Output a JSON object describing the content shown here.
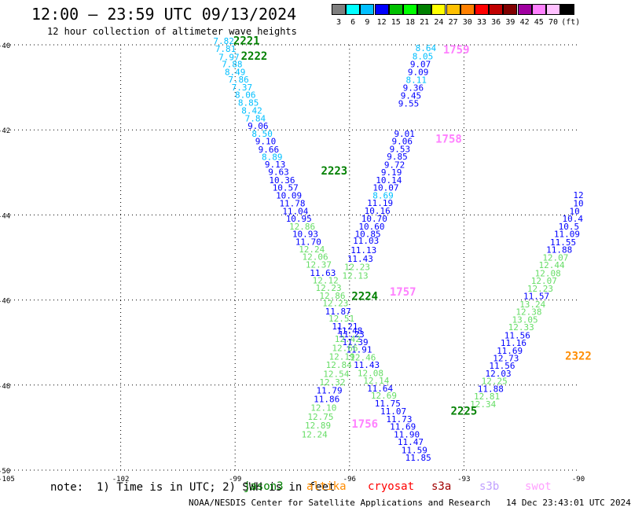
{
  "title": "12:00 – 23:59 UTC 09/13/2024",
  "subtitle": "12 hour collection of altimeter wave heights",
  "colorbar": {
    "labels": [
      "3",
      "6",
      "9",
      "12",
      "15",
      "18",
      "21",
      "24",
      "27",
      "30",
      "33",
      "36",
      "39",
      "42",
      "45",
      "70",
      "(ft)"
    ],
    "colors": [
      "#7f7f7f",
      "#00ffff",
      "#00bfff",
      "#0000ff",
      "#00c000",
      "#00ff00",
      "#008000",
      "#ffff00",
      "#ffc000",
      "#ff8000",
      "#ff0000",
      "#c00000",
      "#800000",
      "#a000a0",
      "#ff80ff",
      "#ffc0ff",
      "#000000"
    ]
  },
  "axes": {
    "y_ticks": [
      "-40",
      "-42",
      "-44",
      "-46",
      "-48",
      "-50"
    ],
    "x_ticks": [
      "-105",
      "-102",
      "-99",
      "-96",
      "-93",
      "-90"
    ]
  },
  "chart_data": {
    "type": "scatter",
    "xlim": [
      -105,
      -90
    ],
    "ylim": [
      -50,
      -40
    ],
    "x_units": "degrees longitude",
    "y_units": "degrees latitude",
    "grid": true,
    "tracks": [
      {
        "pass": "2221/2222/2223/2224/2225",
        "points": [
          {
            "lon": -99.3,
            "lat": -39.98,
            "v": "7.82",
            "c": "#00bfff"
          },
          {
            "lon": -99.25,
            "lat": -40.17,
            "v": "7.81",
            "c": "#00bfff"
          },
          {
            "lon": -99.16,
            "lat": -40.36,
            "v": "7.97",
            "c": "#00bfff"
          },
          {
            "lon": -99.08,
            "lat": -40.53,
            "v": "7.88",
            "c": "#00bfff"
          },
          {
            "lon": -99.0,
            "lat": -40.71,
            "v": "8.49",
            "c": "#00bfff"
          },
          {
            "lon": -98.91,
            "lat": -40.89,
            "v": "7.86",
            "c": "#00bfff"
          },
          {
            "lon": -98.82,
            "lat": -41.07,
            "v": "7.37",
            "c": "#00bfff"
          },
          {
            "lon": -98.73,
            "lat": -41.25,
            "v": "8.06",
            "c": "#00bfff"
          },
          {
            "lon": -98.65,
            "lat": -41.43,
            "v": "8.85",
            "c": "#00bfff"
          },
          {
            "lon": -98.56,
            "lat": -41.62,
            "v": "8.42",
            "c": "#00bfff"
          },
          {
            "lon": -98.47,
            "lat": -41.8,
            "v": "7.84",
            "c": "#00bfff"
          },
          {
            "lon": -98.4,
            "lat": -41.98,
            "v": "9.06",
            "c": "#0000ff"
          },
          {
            "lon": -98.29,
            "lat": -42.16,
            "v": "8.50",
            "c": "#00bfff"
          },
          {
            "lon": -98.2,
            "lat": -42.34,
            "v": "9.10",
            "c": "#0000ff"
          },
          {
            "lon": -98.12,
            "lat": -42.53,
            "v": "9.66",
            "c": "#0000ff"
          },
          {
            "lon": -98.03,
            "lat": -42.71,
            "v": "8.89",
            "c": "#00bfff"
          },
          {
            "lon": -97.95,
            "lat": -42.88,
            "v": "9.13",
            "c": "#0000ff"
          },
          {
            "lon": -97.86,
            "lat": -43.06,
            "v": "9.63",
            "c": "#0000ff"
          },
          {
            "lon": -97.77,
            "lat": -43.25,
            "v": "10.36",
            "c": "#0000ff"
          },
          {
            "lon": -97.68,
            "lat": -43.43,
            "v": "10.57",
            "c": "#0000ff"
          },
          {
            "lon": -97.59,
            "lat": -43.61,
            "v": "10.09",
            "c": "#0000ff"
          },
          {
            "lon": -97.5,
            "lat": -43.8,
            "v": "11.78",
            "c": "#0000ff"
          },
          {
            "lon": -97.42,
            "lat": -43.98,
            "v": "11.04",
            "c": "#0000ff"
          },
          {
            "lon": -97.33,
            "lat": -44.16,
            "v": "10.95",
            "c": "#0000ff"
          },
          {
            "lon": -97.24,
            "lat": -44.34,
            "v": "12.86",
            "c": "#66dd66"
          },
          {
            "lon": -97.16,
            "lat": -44.52,
            "v": "10.93",
            "c": "#0000ff"
          },
          {
            "lon": -97.08,
            "lat": -44.7,
            "v": "11.70",
            "c": "#0000ff"
          },
          {
            "lon": -96.99,
            "lat": -44.88,
            "v": "12.24",
            "c": "#66dd66"
          },
          {
            "lon": -96.9,
            "lat": -45.06,
            "v": "12.06",
            "c": "#66dd66"
          },
          {
            "lon": -96.81,
            "lat": -45.24,
            "v": "12.37",
            "c": "#66dd66"
          },
          {
            "lon": -96.7,
            "lat": -45.43,
            "v": "11.63",
            "c": "#0000ff"
          },
          {
            "lon": -96.63,
            "lat": -45.61,
            "v": "12.12",
            "c": "#66dd66"
          },
          {
            "lon": -96.55,
            "lat": -45.79,
            "v": "12.23",
            "c": "#66dd66"
          },
          {
            "lon": -96.45,
            "lat": -45.97,
            "v": "12.86",
            "c": "#66dd66"
          },
          {
            "lon": -96.37,
            "lat": -46.15,
            "v": "12.23",
            "c": "#66dd66"
          },
          {
            "lon": -96.3,
            "lat": -46.34,
            "v": "11.87",
            "c": "#0000ff"
          },
          {
            "lon": -96.21,
            "lat": -46.51,
            "v": "12.51",
            "c": "#66dd66"
          },
          {
            "lon": -96.12,
            "lat": -46.69,
            "v": "11.21",
            "c": "#0000ff"
          },
          {
            "lon": -95.95,
            "lat": -46.88,
            "v": "11.23",
            "c": "#0000ff"
          },
          {
            "lon": -95.85,
            "lat": -47.06,
            "v": "11.39",
            "c": "#0000ff"
          },
          {
            "lon": -95.75,
            "lat": -47.24,
            "v": "11.91",
            "c": "#0000ff"
          },
          {
            "lon": -95.65,
            "lat": -47.42,
            "v": "12.46",
            "c": "#66dd66"
          },
          {
            "lon": -95.55,
            "lat": -47.6,
            "v": "11.43",
            "c": "#0000ff"
          },
          {
            "lon": -95.45,
            "lat": -47.79,
            "v": "12.08",
            "c": "#66dd66"
          },
          {
            "lon": -95.3,
            "lat": -47.97,
            "v": "12.14",
            "c": "#66dd66"
          },
          {
            "lon": -95.2,
            "lat": -48.15,
            "v": "11.64",
            "c": "#0000ff"
          },
          {
            "lon": -95.1,
            "lat": -48.32,
            "v": "12.69",
            "c": "#66dd66"
          },
          {
            "lon": -95.0,
            "lat": -48.5,
            "v": "11.75",
            "c": "#0000ff"
          },
          {
            "lon": -94.85,
            "lat": -48.69,
            "v": "11.07",
            "c": "#0000ff"
          },
          {
            "lon": -94.7,
            "lat": -48.87,
            "v": "11.73",
            "c": "#0000ff"
          },
          {
            "lon": -94.6,
            "lat": -49.05,
            "v": "11.69",
            "c": "#0000ff"
          },
          {
            "lon": -94.5,
            "lat": -49.23,
            "v": "11.90",
            "c": "#0000ff"
          },
          {
            "lon": -94.4,
            "lat": -49.41,
            "v": "11.47",
            "c": "#0000ff"
          },
          {
            "lon": -94.3,
            "lat": -49.6,
            "v": "11.59",
            "c": "#0000ff"
          },
          {
            "lon": -94.2,
            "lat": -49.78,
            "v": "11.85",
            "c": "#0000ff"
          }
        ]
      },
      {
        "pass": "1756/1757/1758/1759",
        "points": [
          {
            "lon": -94.0,
            "lat": -40.15,
            "v": "8.64",
            "c": "#00bfff"
          },
          {
            "lon": -94.08,
            "lat": -40.34,
            "v": "8.05",
            "c": "#00bfff"
          },
          {
            "lon": -94.14,
            "lat": -40.53,
            "v": "9.07",
            "c": "#0000ff"
          },
          {
            "lon": -94.2,
            "lat": -40.71,
            "v": "9.09",
            "c": "#0000ff"
          },
          {
            "lon": -94.25,
            "lat": -40.9,
            "v": "8.11",
            "c": "#00bfff"
          },
          {
            "lon": -94.33,
            "lat": -41.08,
            "v": "9.36",
            "c": "#0000ff"
          },
          {
            "lon": -94.39,
            "lat": -41.27,
            "v": "9.45",
            "c": "#0000ff"
          },
          {
            "lon": -94.45,
            "lat": -41.45,
            "v": "9.55",
            "c": "#0000ff"
          },
          {
            "lon": -94.56,
            "lat": -42.16,
            "v": "9.01",
            "c": "#0000ff"
          },
          {
            "lon": -94.62,
            "lat": -42.34,
            "v": "9.06",
            "c": "#0000ff"
          },
          {
            "lon": -94.68,
            "lat": -42.52,
            "v": "9.53",
            "c": "#0000ff"
          },
          {
            "lon": -94.75,
            "lat": -42.7,
            "v": "9.85",
            "c": "#0000ff"
          },
          {
            "lon": -94.82,
            "lat": -42.89,
            "v": "9.72",
            "c": "#0000ff"
          },
          {
            "lon": -94.9,
            "lat": -43.07,
            "v": "9.19",
            "c": "#0000ff"
          },
          {
            "lon": -94.97,
            "lat": -43.25,
            "v": "10.14",
            "c": "#0000ff"
          },
          {
            "lon": -95.05,
            "lat": -43.43,
            "v": "10.07",
            "c": "#0000ff"
          },
          {
            "lon": -95.12,
            "lat": -43.61,
            "v": "8.69",
            "c": "#00bfff"
          },
          {
            "lon": -95.2,
            "lat": -43.79,
            "v": "11.19",
            "c": "#0000ff"
          },
          {
            "lon": -95.27,
            "lat": -43.97,
            "v": "10.16",
            "c": "#0000ff"
          },
          {
            "lon": -95.35,
            "lat": -44.16,
            "v": "10.70",
            "c": "#0000ff"
          },
          {
            "lon": -95.42,
            "lat": -44.34,
            "v": "10.60",
            "c": "#0000ff"
          },
          {
            "lon": -95.52,
            "lat": -44.52,
            "v": "10.85",
            "c": "#0000ff"
          },
          {
            "lon": -95.57,
            "lat": -44.68,
            "v": "11.03",
            "c": "#0000ff"
          },
          {
            "lon": -95.63,
            "lat": -44.9,
            "v": "11.13",
            "c": "#0000ff"
          },
          {
            "lon": -95.72,
            "lat": -45.1,
            "v": "11.43",
            "c": "#0000ff"
          },
          {
            "lon": -95.8,
            "lat": -45.3,
            "v": "12.23",
            "c": "#66dd66"
          },
          {
            "lon": -95.85,
            "lat": -45.5,
            "v": "12.13",
            "c": "#66dd66"
          },
          {
            "lon": -96.0,
            "lat": -46.79,
            "v": "11.48",
            "c": "#0000ff"
          },
          {
            "lon": -96.05,
            "lat": -46.99,
            "v": "12.42",
            "c": "#66dd66"
          },
          {
            "lon": -96.12,
            "lat": -47.2,
            "v": "12.66",
            "c": "#66dd66"
          },
          {
            "lon": -96.2,
            "lat": -47.4,
            "v": "12.19",
            "c": "#66dd66"
          },
          {
            "lon": -96.28,
            "lat": -47.6,
            "v": "12.84",
            "c": "#66dd66"
          },
          {
            "lon": -96.35,
            "lat": -47.81,
            "v": "12.54",
            "c": "#66dd66"
          },
          {
            "lon": -96.45,
            "lat": -48.0,
            "v": "12.32",
            "c": "#66dd66"
          },
          {
            "lon": -96.53,
            "lat": -48.2,
            "v": "11.79",
            "c": "#0000ff"
          },
          {
            "lon": -96.6,
            "lat": -48.4,
            "v": "11.86",
            "c": "#0000ff"
          },
          {
            "lon": -96.68,
            "lat": -48.6,
            "v": "12.10",
            "c": "#66dd66"
          },
          {
            "lon": -96.76,
            "lat": -48.82,
            "v": "12.75",
            "c": "#66dd66"
          },
          {
            "lon": -96.83,
            "lat": -49.02,
            "v": "12.89",
            "c": "#66dd66"
          },
          {
            "lon": -96.92,
            "lat": -49.23,
            "v": "12.24",
            "c": "#66dd66"
          }
        ]
      },
      {
        "pass": "2322",
        "points": [
          {
            "lon": -90.0,
            "lat": -43.6,
            "v": "12",
            "c": "#0000ff"
          },
          {
            "lon": -90.0,
            "lat": -43.8,
            "v": "10",
            "c": "#0000ff"
          },
          {
            "lon": -90.1,
            "lat": -43.98,
            "v": "10",
            "c": "#0000ff"
          },
          {
            "lon": -90.15,
            "lat": -44.16,
            "v": "10.4",
            "c": "#0000ff"
          },
          {
            "lon": -90.25,
            "lat": -44.34,
            "v": "10.5",
            "c": "#0000ff"
          },
          {
            "lon": -90.3,
            "lat": -44.52,
            "v": "11.09",
            "c": "#0000ff"
          },
          {
            "lon": -90.4,
            "lat": -44.71,
            "v": "11.55",
            "c": "#0000ff"
          },
          {
            "lon": -90.5,
            "lat": -44.89,
            "v": "11.88",
            "c": "#0000ff"
          },
          {
            "lon": -90.6,
            "lat": -45.07,
            "v": "12.07",
            "c": "#66dd66"
          },
          {
            "lon": -90.7,
            "lat": -45.25,
            "v": "12.44",
            "c": "#66dd66"
          },
          {
            "lon": -90.8,
            "lat": -45.44,
            "v": "12.08",
            "c": "#66dd66"
          },
          {
            "lon": -90.9,
            "lat": -45.62,
            "v": "12.07",
            "c": "#66dd66"
          },
          {
            "lon": -91.0,
            "lat": -45.8,
            "v": "12.23",
            "c": "#66dd66"
          },
          {
            "lon": -91.1,
            "lat": -45.98,
            "v": "11.57",
            "c": "#0000ff"
          },
          {
            "lon": -91.2,
            "lat": -46.17,
            "v": "13.24",
            "c": "#66dd66"
          },
          {
            "lon": -91.3,
            "lat": -46.35,
            "v": "12.38",
            "c": "#66dd66"
          },
          {
            "lon": -91.4,
            "lat": -46.53,
            "v": "13.05",
            "c": "#66dd66"
          },
          {
            "lon": -91.5,
            "lat": -46.71,
            "v": "12.33",
            "c": "#66dd66"
          },
          {
            "lon": -91.6,
            "lat": -46.9,
            "v": "11.56",
            "c": "#0000ff"
          },
          {
            "lon": -91.7,
            "lat": -47.08,
            "v": "11.16",
            "c": "#0000ff"
          },
          {
            "lon": -91.8,
            "lat": -47.26,
            "v": "11.69",
            "c": "#0000ff"
          },
          {
            "lon": -91.9,
            "lat": -47.44,
            "v": "12.73",
            "c": "#0000ff"
          },
          {
            "lon": -92.0,
            "lat": -47.62,
            "v": "11.56",
            "c": "#0000ff"
          },
          {
            "lon": -92.1,
            "lat": -47.8,
            "v": "12.03",
            "c": "#0000ff"
          },
          {
            "lon": -92.2,
            "lat": -47.98,
            "v": "12.25",
            "c": "#66dd66"
          },
          {
            "lon": -92.3,
            "lat": -48.16,
            "v": "11.88",
            "c": "#0000ff"
          },
          {
            "lon": -92.4,
            "lat": -48.34,
            "v": "12.81",
            "c": "#66dd66"
          },
          {
            "lon": -92.5,
            "lat": -48.52,
            "v": "12.34",
            "c": "#66dd66"
          }
        ]
      }
    ],
    "pass_labels": [
      {
        "lon": -98.7,
        "lat": -39.99,
        "text": "2221",
        "c": "#008000"
      },
      {
        "lon": -98.5,
        "lat": -40.35,
        "text": "2222",
        "c": "#008000"
      },
      {
        "lon": -96.4,
        "lat": -43.05,
        "text": "2223",
        "c": "#008000"
      },
      {
        "lon": -95.6,
        "lat": -46.0,
        "text": "2224",
        "c": "#008000"
      },
      {
        "lon": -93.0,
        "lat": -48.7,
        "text": "2225",
        "c": "#008000"
      },
      {
        "lon": -93.2,
        "lat": -40.2,
        "text": "1759",
        "c": "#ff80ff"
      },
      {
        "lon": -93.4,
        "lat": -42.3,
        "text": "1758",
        "c": "#ff80ff"
      },
      {
        "lon": -94.6,
        "lat": -45.9,
        "text": "1757",
        "c": "#ff80ff"
      },
      {
        "lon": -95.6,
        "lat": -49.0,
        "text": "1756",
        "c": "#ff80ff"
      },
      {
        "lon": -90.0,
        "lat": -47.4,
        "text": "2322",
        "c": "#ff8c00"
      }
    ]
  },
  "footer": {
    "note": "note:  1) Time is in UTC; 2) SWH is in feet",
    "satellites": [
      {
        "name": "jason3",
        "color": "#008000"
      },
      {
        "name": "altika",
        "color": "#ff8c00"
      },
      {
        "name": "cryosat",
        "color": "#ff0000"
      },
      {
        "name": "s3a",
        "color": "#a00000"
      },
      {
        "name": "s3b",
        "color": "#c0a0ff"
      },
      {
        "name": "swot",
        "color": "#ffa0ff"
      }
    ],
    "credit": "NOAA/NESDIS Center for Satellite Applications and Research   14 Dec 23:43:01 UTC 2024"
  }
}
